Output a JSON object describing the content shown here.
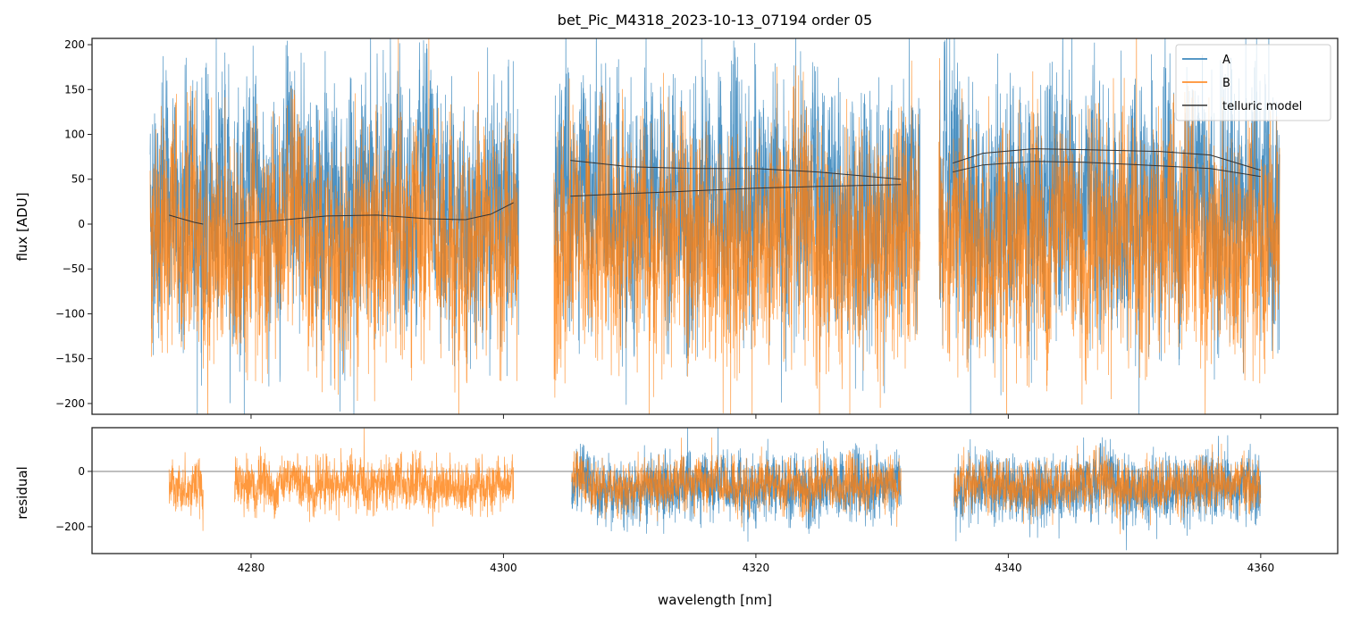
{
  "chart_data": [
    {
      "type": "line",
      "panel": "flux",
      "title": "bet_Pic_M4318_2023-10-13_07194  order 05",
      "xlabel": "",
      "ylabel": "flux [ADU]",
      "xlim": [
        4267.4,
        4366.1
      ],
      "ylim": [
        -212,
        207
      ],
      "xticks": [
        4280,
        4300,
        4320,
        4340,
        4360
      ],
      "yticks": [
        -200,
        -150,
        -100,
        -50,
        0,
        50,
        100,
        150,
        200
      ],
      "ytick_labels": [
        "−200",
        "−150",
        "−100",
        "−50",
        "0",
        "50",
        "100",
        "150",
        "200"
      ],
      "legend": {
        "position": "top-right",
        "entries": [
          "A",
          "B",
          "telluric model"
        ]
      },
      "colors": {
        "A": "#1f77b4",
        "B": "#ff7f0e",
        "telluric model": "#333333"
      },
      "series": [
        {
          "name": "A",
          "segments": [
            [
              4272.0,
              4301.2
            ],
            [
              4304.0,
              4333.0
            ],
            [
              4334.5,
              4361.5
            ]
          ],
          "mean": 20,
          "noise_sd": 80
        },
        {
          "name": "B",
          "segments": [
            [
              4272.0,
              4301.2
            ],
            [
              4304.0,
              4333.0
            ],
            [
              4334.5,
              4361.5
            ]
          ],
          "mean": -20,
          "noise_sd": 75
        },
        {
          "name": "telluric model",
          "curves": [
            {
              "x": [
                4273.5,
                4274.5,
                4275.5,
                4276.2
              ],
              "y": [
                10,
                6,
                2,
                0
              ]
            },
            {
              "x": [
                4278.7,
                4282,
                4286,
                4290,
                4294,
                4297,
                4299,
                4300.8
              ],
              "y": [
                0,
                4,
                9,
                10,
                6,
                5,
                11,
                24
              ]
            },
            {
              "x": [
                4305.3,
                4310,
                4315,
                4320,
                4325,
                4331.5
              ],
              "y": [
                71,
                64,
                62,
                62,
                58,
                50
              ]
            },
            {
              "x": [
                4305.3,
                4310,
                4315,
                4320,
                4325,
                4331.5
              ],
              "y": [
                31,
                34,
                37,
                40,
                42,
                44
              ]
            },
            {
              "x": [
                4335.6,
                4338,
                4342,
                4346,
                4352,
                4356,
                4360
              ],
              "y": [
                68,
                79,
                84,
                83,
                81,
                77,
                60
              ]
            },
            {
              "x": [
                4335.6,
                4338,
                4342,
                4346,
                4352,
                4356,
                4360
              ],
              "y": [
                58,
                66,
                70,
                69,
                65,
                62,
                53
              ]
            }
          ]
        }
      ]
    },
    {
      "type": "line",
      "panel": "residual",
      "xlabel": "wavelength [nm]",
      "ylabel": "residual",
      "xlim": [
        4267.4,
        4366.1
      ],
      "ylim": [
        -297,
        158
      ],
      "xticks": [
        4280,
        4300,
        4320,
        4340,
        4360
      ],
      "xtick_labels": [
        "4280",
        "4300",
        "4320",
        "4340",
        "4360"
      ],
      "yticks": [
        -200,
        0
      ],
      "ytick_labels": [
        "−200",
        "0"
      ],
      "hline": 0,
      "series": [
        {
          "name": "A",
          "segments": [
            [
              4305.4,
              4331.5
            ],
            [
              4335.7,
              4360.0
            ]
          ],
          "mean": -60,
          "noise_sd": 70
        },
        {
          "name": "B",
          "segments": [
            [
              4273.5,
              4276.2
            ],
            [
              4278.7,
              4300.8
            ],
            [
              4305.4,
              4331.5
            ],
            [
              4335.7,
              4360.0
            ]
          ],
          "mean": -50,
          "noise_sd": 55
        }
      ]
    }
  ]
}
